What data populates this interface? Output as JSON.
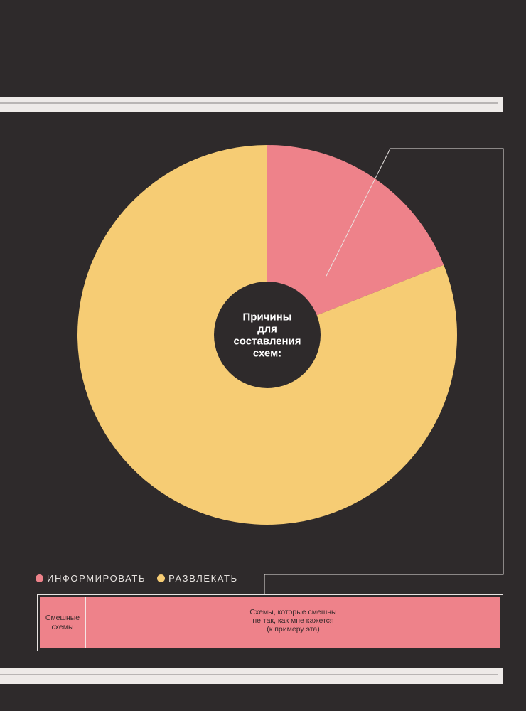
{
  "chart_data": {
    "type": "pie",
    "title": "Причины для составления схем:",
    "labels": [
      "ИНФОРМИРОВАТЬ",
      "РАЗВЛЕКАТЬ"
    ],
    "values": [
      19,
      81
    ],
    "colors": [
      "#ee828a",
      "#f6cc74"
    ],
    "legend": "bottom-left"
  },
  "center_label_lines": [
    "Причины",
    "для",
    "составления",
    "схем:"
  ],
  "legend": {
    "items": [
      {
        "label": "ИНФОРМИРОВАТЬ",
        "color": "#ee828a"
      },
      {
        "label": "РАЗВЛЕКАТЬ",
        "color": "#f6cc74"
      }
    ]
  },
  "breakdown": {
    "left_text": "Смешные\nсхемы",
    "right_text": "Схемы, которые смешны\nне так, как мне кажется\n(к примеру эта)",
    "color": "#ee828a"
  },
  "colors": {
    "background": "#2e2a2b",
    "stripe": "#eeeae8",
    "line": "#e8e4e2"
  }
}
